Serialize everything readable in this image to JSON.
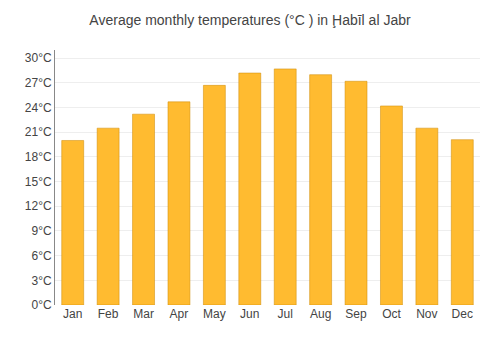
{
  "chart_data": {
    "type": "bar",
    "title": "Average monthly temperatures (°C ) in Ḩabīl al Jabr",
    "categories": [
      "Jan",
      "Feb",
      "Mar",
      "Apr",
      "May",
      "Jun",
      "Jul",
      "Aug",
      "Sep",
      "Oct",
      "Nov",
      "Dec"
    ],
    "values": [
      20.0,
      21.5,
      23.2,
      24.7,
      26.7,
      28.2,
      28.7,
      28.0,
      27.2,
      24.2,
      21.5,
      20.1
    ],
    "color": "#FFBB30",
    "ylim": [
      0,
      31
    ],
    "yticks": [
      {
        "value": 0,
        "label": "0°C"
      },
      {
        "value": 3,
        "label": "3°C"
      },
      {
        "value": 6,
        "label": "6°C"
      },
      {
        "value": 9,
        "label": "9°C"
      },
      {
        "value": 12,
        "label": "12°C"
      },
      {
        "value": 15,
        "label": "15°C"
      },
      {
        "value": 18,
        "label": "18°C"
      },
      {
        "value": 21,
        "label": "21°C"
      },
      {
        "value": 24,
        "label": "24°C"
      },
      {
        "value": 27,
        "label": "27°C"
      },
      {
        "value": 30,
        "label": "30°C"
      }
    ],
    "grid": true
  }
}
